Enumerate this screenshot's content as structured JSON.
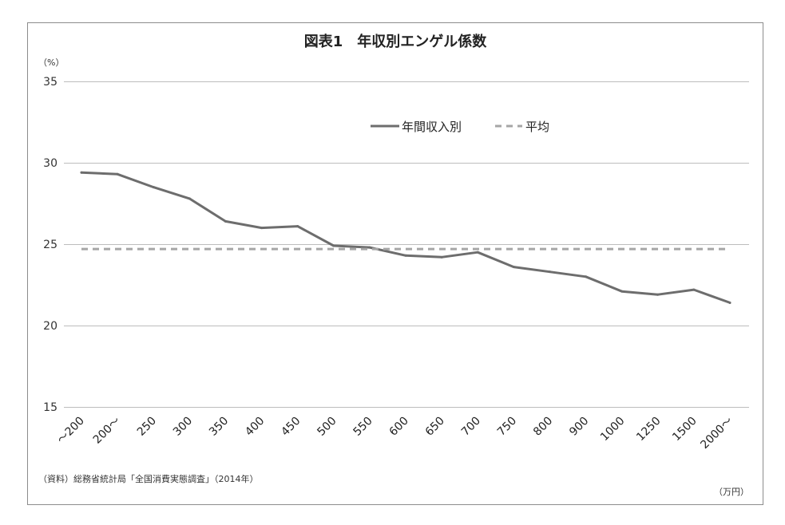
{
  "chart_data": {
    "type": "line",
    "title": "図表1　年収別エンゲル係数",
    "y_unit": "（%）",
    "x_unit": "（万円）",
    "source": "（資料）総務省統計局「全国消費実態調査」（2014年）",
    "categories": [
      "～200",
      "200～",
      "250",
      "300",
      "350",
      "400",
      "450",
      "500",
      "550",
      "600",
      "650",
      "700",
      "750",
      "800",
      "900",
      "1000",
      "1250",
      "1500",
      "2000～"
    ],
    "ylim": [
      15,
      35
    ],
    "yticks": [
      15,
      20,
      25,
      30,
      35
    ],
    "grid": true,
    "legend_position": "top-right",
    "series": [
      {
        "name": "年間収入別",
        "style": "solid",
        "color": "#6d6d6d",
        "values": [
          29.4,
          29.3,
          28.5,
          27.8,
          26.4,
          26.0,
          26.1,
          24.9,
          24.8,
          24.3,
          24.2,
          24.5,
          23.6,
          23.3,
          23.0,
          22.1,
          21.9,
          22.2,
          21.4
        ]
      },
      {
        "name": "平均",
        "style": "dashed",
        "color": "#a6a6a6",
        "values": [
          24.7,
          24.7,
          24.7,
          24.7,
          24.7,
          24.7,
          24.7,
          24.7,
          24.7,
          24.7,
          24.7,
          24.7,
          24.7,
          24.7,
          24.7,
          24.7,
          24.7,
          24.7,
          24.7
        ]
      }
    ]
  }
}
